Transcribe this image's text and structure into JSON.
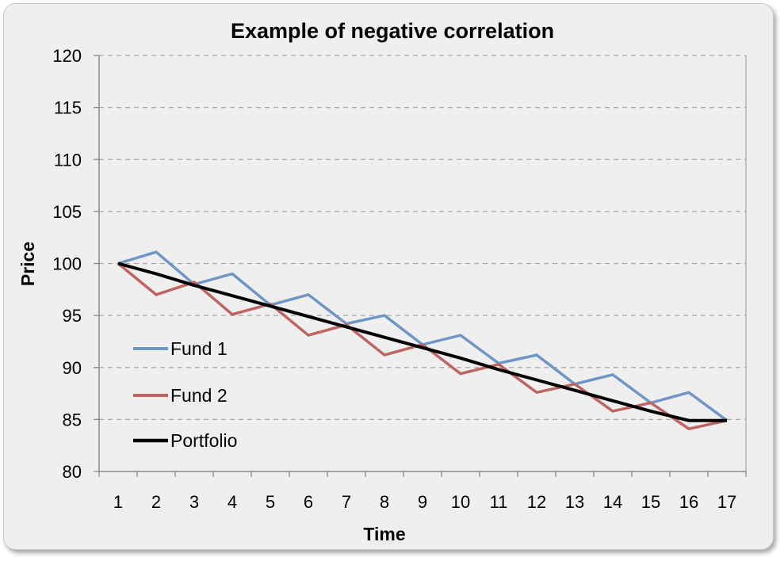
{
  "chart_data": {
    "type": "line",
    "title": "Example of negative correlation",
    "xlabel": "Time",
    "ylabel": "Price",
    "categories": [
      1,
      2,
      3,
      4,
      5,
      6,
      7,
      8,
      9,
      10,
      11,
      12,
      13,
      14,
      15,
      16,
      17
    ],
    "ylim": [
      80,
      120
    ],
    "yticks": [
      80,
      85,
      90,
      95,
      100,
      105,
      110,
      115,
      120
    ],
    "grid": "horizontal-dashed",
    "legend_position": "left",
    "series": [
      {
        "name": "Fund 1",
        "color": "#7096c8",
        "values": [
          100,
          101.1,
          98.0,
          99.0,
          96.0,
          97.0,
          94.2,
          95.0,
          92.2,
          93.1,
          90.4,
          91.2,
          88.4,
          89.3,
          86.6,
          87.6,
          84.9
        ]
      },
      {
        "name": "Fund 2",
        "color": "#bf6461",
        "values": [
          100,
          97.0,
          98.2,
          95.1,
          96.1,
          93.1,
          94.1,
          91.2,
          92.2,
          89.4,
          90.3,
          87.6,
          88.4,
          85.8,
          86.6,
          84.1,
          84.9
        ]
      },
      {
        "name": "Portfolio",
        "color": "#000000",
        "values": [
          100,
          99.0,
          97.9,
          96.9,
          95.9,
          94.9,
          93.9,
          92.9,
          91.9,
          90.9,
          89.8,
          88.8,
          87.8,
          86.8,
          85.8,
          84.9,
          84.9
        ]
      }
    ]
  }
}
